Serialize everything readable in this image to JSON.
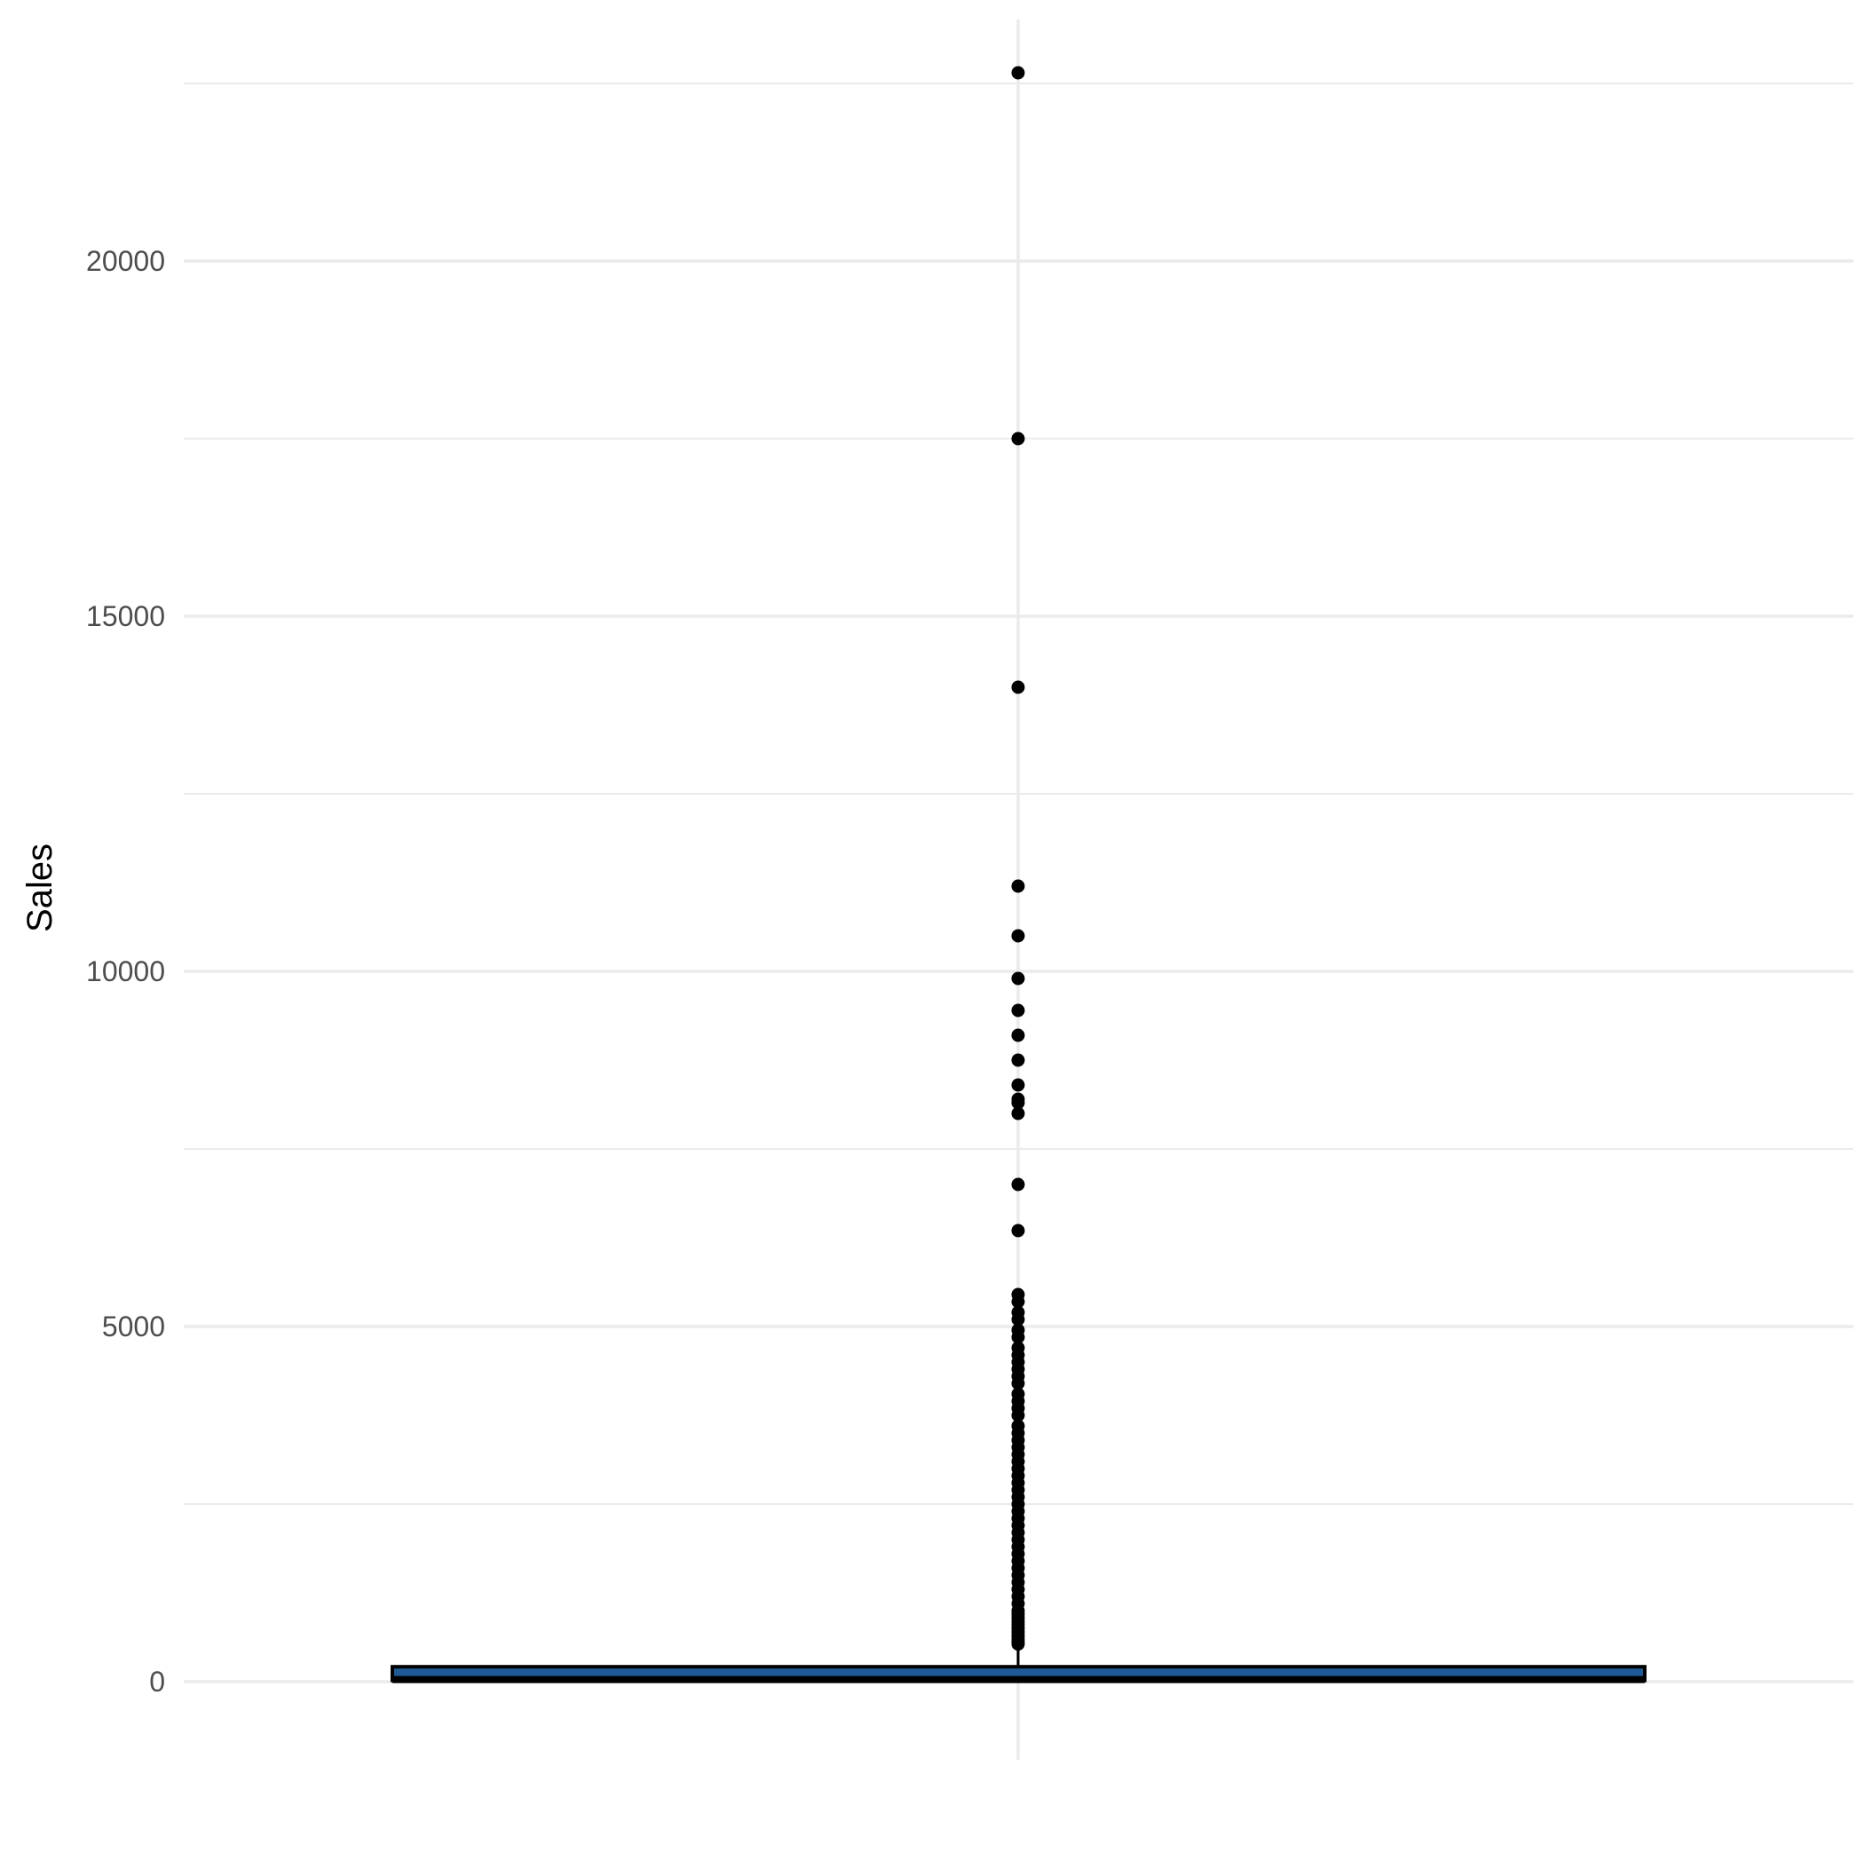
{
  "chart_data": {
    "type": "box",
    "title": "",
    "xlabel": "",
    "ylabel": "Sales",
    "ylim": [
      -1100,
      23400
    ],
    "y_ticks": [
      0,
      5000,
      10000,
      15000,
      20000
    ],
    "y_tick_labels": [
      "0",
      "5000",
      "10000",
      "15000",
      "20000"
    ],
    "grid": true,
    "legend": "none",
    "box": {
      "q1": 17,
      "median": 55,
      "q3": 210,
      "whisker_low": 0.4,
      "whisker_high": 500,
      "fill_color": "#1f5a96",
      "line_color": "#000000"
    },
    "outliers": [
      22650,
      17500,
      14000,
      11200,
      10500,
      9900,
      9450,
      9100,
      8750,
      8400,
      8200,
      8150,
      8000,
      7000,
      6350,
      5450,
      5350,
      5200,
      5100,
      4950,
      4850,
      4700,
      4600,
      4500,
      4400,
      4300,
      4200,
      4050,
      3950,
      3850,
      3750,
      3600,
      3500,
      3400,
      3300,
      3200,
      3100,
      3000,
      2900,
      2800,
      2700,
      2600,
      2500,
      2400,
      2300,
      2200,
      2100,
      2000,
      1900,
      1800,
      1700,
      1600,
      1500,
      1400,
      1300,
      1200,
      1100,
      1000,
      950,
      900,
      850,
      800,
      750,
      700,
      650,
      600,
      560,
      530
    ]
  },
  "colors": {
    "grid": "#ebebeb",
    "point": "#000000",
    "box_fill": "#1f5a96"
  }
}
